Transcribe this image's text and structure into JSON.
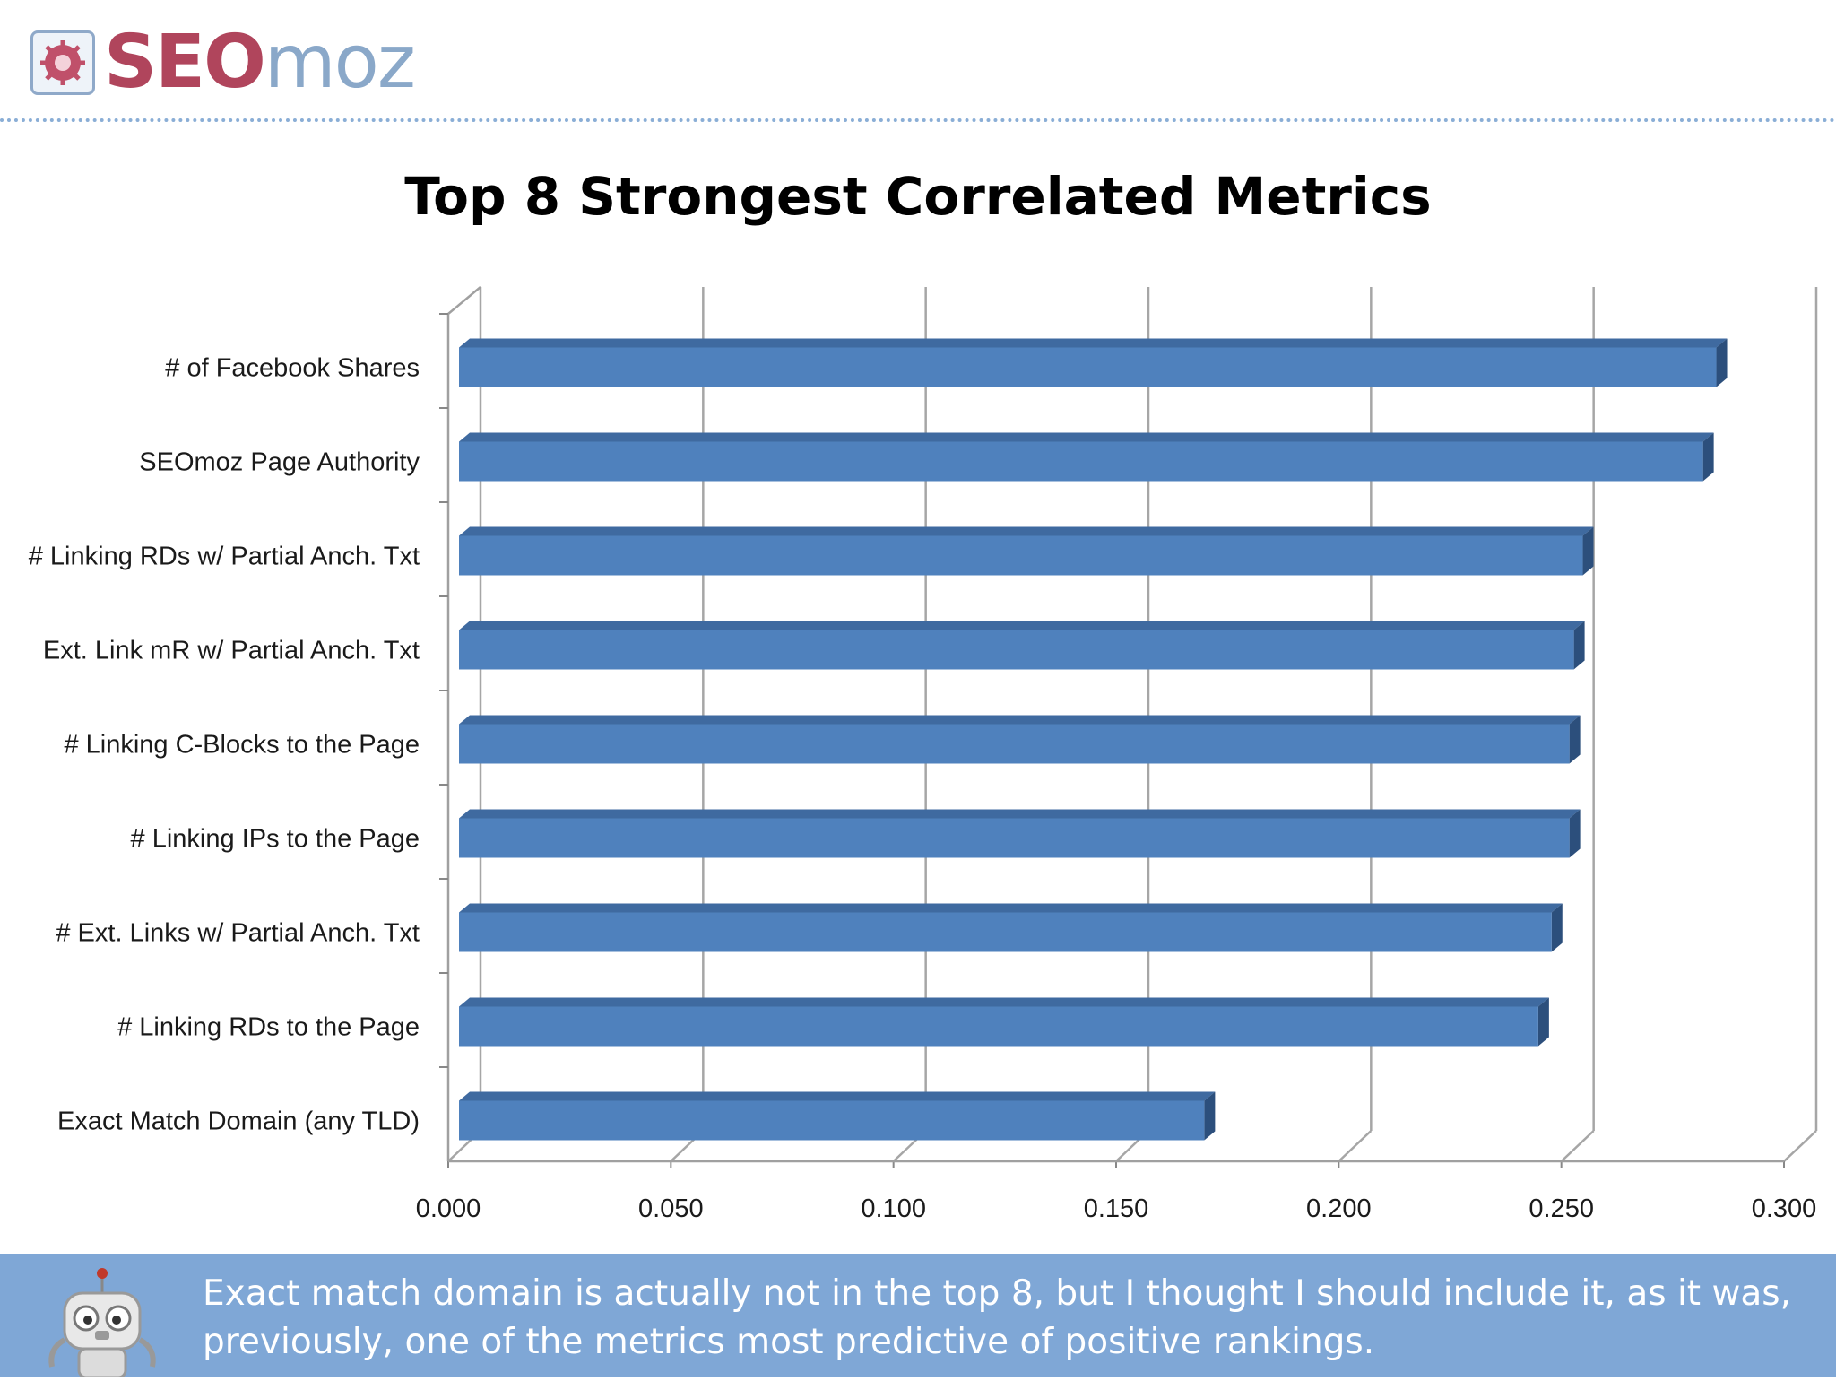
{
  "header": {
    "logo_seo": "SEO",
    "logo_moz": "moz"
  },
  "colors": {
    "bar_front": "#4f81bd",
    "bar_top": "#3f6aa0",
    "bar_side": "#2c4f7c",
    "grid": "#a6a6a6",
    "footer_bg": "#7fa7d6",
    "logo_seo": "#b0455c",
    "logo_moz": "#8aa8c9"
  },
  "chart_data": {
    "type": "bar",
    "orientation": "horizontal",
    "style": "3d",
    "title": "Top 8 Strongest Correlated Metrics",
    "xlabel": "",
    "ylabel": "",
    "categories": [
      "# of Facebook Shares",
      "SEOmoz Page Authority",
      "# Linking RDs w/ Partial Anch. Txt",
      "Ext. Link mR w/ Partial Anch. Txt",
      "# Linking C-Blocks to the  Page",
      "# Linking IPs to the Page",
      "# Ext. Links w/ Partial Anch. Txt",
      "# Linking RDs to the Page",
      "Exact Match Domain (any TLD)"
    ],
    "values": [
      0.284,
      0.281,
      0.254,
      0.252,
      0.251,
      0.251,
      0.247,
      0.244,
      0.169
    ],
    "xlim": [
      0,
      0.3
    ],
    "x_ticks": [
      "0.000",
      "0.050",
      "0.100",
      "0.150",
      "0.200",
      "0.250",
      "0.300"
    ],
    "grid": "vertical",
    "legend": "none"
  },
  "footer": {
    "text_line1": "Exact match domain is actually not in the top 8, but I thought I should include it, as it was,",
    "text_line2": "previously, one of the metrics most predictive of positive rankings."
  }
}
